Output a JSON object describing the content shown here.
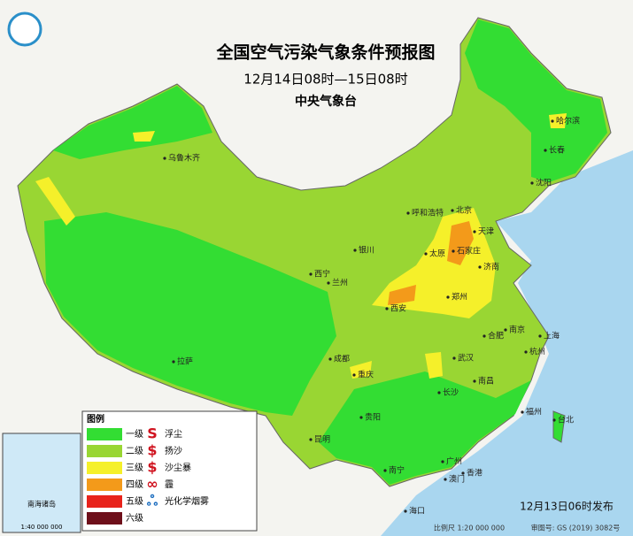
{
  "header": {
    "title": "全国空气污染气象条件预报图",
    "subtitle": "12月14日08时—15日08时",
    "issuer": "中央气象台"
  },
  "legend": {
    "title": "图例",
    "levels": [
      {
        "label": "一级",
        "color": "#33dd33"
      },
      {
        "label": "二级",
        "color": "#99d633"
      },
      {
        "label": "三级",
        "color": "#f5f02a"
      },
      {
        "label": "四级",
        "color": "#f39a1a"
      },
      {
        "label": "五级",
        "color": "#e8231b"
      },
      {
        "label": "六级",
        "color": "#6e0f1a"
      }
    ],
    "symbols": [
      "浮尘",
      "扬沙",
      "沙尘暴",
      "霾",
      "光化学烟雾"
    ]
  },
  "cities": [
    "哈尔滨",
    "长春",
    "沈阳",
    "乌鲁木齐",
    "呼和浩特",
    "北京",
    "天津",
    "石家庄",
    "太原",
    "济南",
    "银川",
    "西宁",
    "兰州",
    "西安",
    "郑州",
    "合肥",
    "南京",
    "上海",
    "杭州",
    "武汉",
    "成都",
    "重庆",
    "长沙",
    "南昌",
    "拉萨",
    "贵阳",
    "福州",
    "台北",
    "昆明",
    "南宁",
    "广州",
    "澳门",
    "香港",
    "海口"
  ],
  "inset": {
    "label": "南海诸岛",
    "scale": "1:40 000 000"
  },
  "footer": {
    "publish": "12月13日06时发布",
    "scale": "比例尺 1:20 000 000",
    "review": "审图号: GS (2019) 3082号"
  }
}
